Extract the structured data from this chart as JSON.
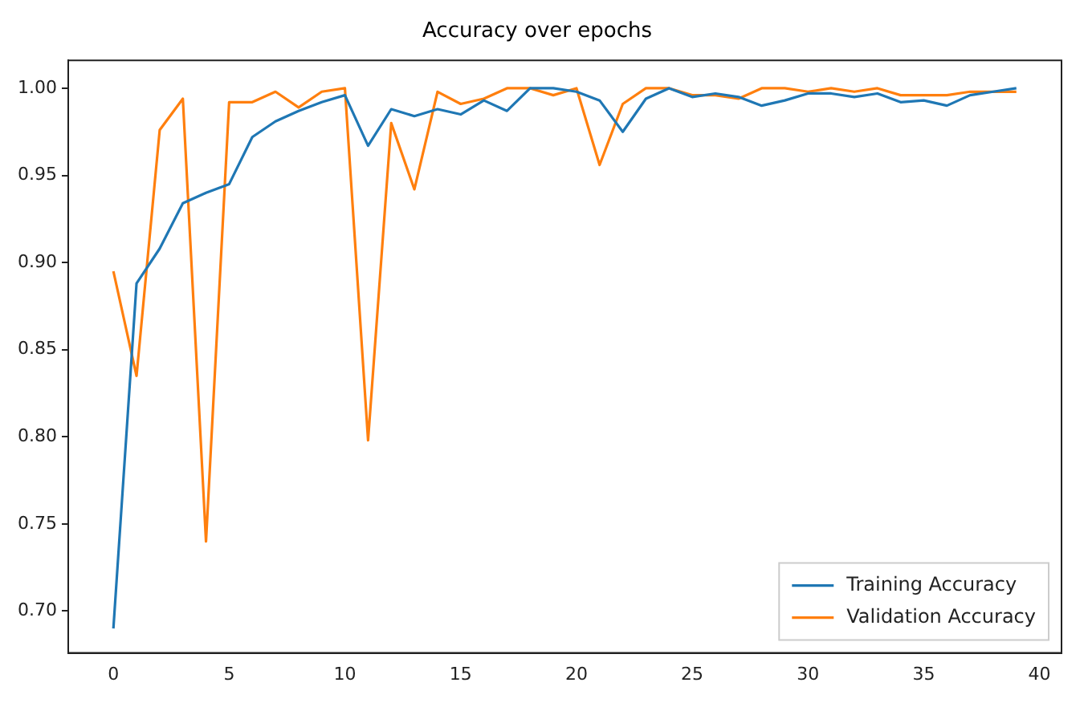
{
  "chart_data": {
    "type": "line",
    "title": "Accuracy over epochs",
    "x": [
      0,
      1,
      2,
      3,
      4,
      5,
      6,
      7,
      8,
      9,
      10,
      11,
      12,
      13,
      14,
      15,
      16,
      17,
      18,
      19,
      20,
      21,
      22,
      23,
      24,
      25,
      26,
      27,
      28,
      29,
      30,
      31,
      32,
      33,
      34,
      35,
      36,
      37,
      38,
      39
    ],
    "series": [
      {
        "name": "Training Accuracy",
        "color": "#1f77b4",
        "values": [
          0.69,
          0.888,
          0.908,
          0.934,
          0.94,
          0.945,
          0.972,
          0.981,
          0.987,
          0.992,
          0.996,
          0.967,
          0.988,
          0.984,
          0.988,
          0.985,
          0.993,
          0.987,
          1.0,
          1.0,
          0.998,
          0.993,
          0.975,
          0.994,
          1.0,
          0.995,
          0.997,
          0.995,
          0.99,
          0.993,
          0.997,
          0.997,
          0.995,
          0.997,
          0.992,
          0.993,
          0.99,
          0.996,
          0.998,
          1.0
        ]
      },
      {
        "name": "Validation Accuracy",
        "color": "#ff7f0e",
        "values": [
          0.895,
          0.835,
          0.976,
          0.994,
          0.74,
          0.992,
          0.992,
          0.998,
          0.989,
          0.998,
          1.0,
          0.798,
          0.98,
          0.942,
          0.998,
          0.991,
          0.994,
          1.0,
          1.0,
          0.996,
          1.0,
          0.956,
          0.991,
          1.0,
          1.0,
          0.996,
          0.996,
          0.994,
          1.0,
          1.0,
          0.998,
          1.0,
          0.998,
          1.0,
          0.996,
          0.996,
          0.996,
          0.998,
          0.998,
          0.998
        ]
      }
    ],
    "xlim": [
      -1.95,
      40.95
    ],
    "xticks": [
      0,
      5,
      10,
      15,
      20,
      25,
      30,
      35,
      40
    ],
    "ylim": [
      0.676,
      1.016
    ],
    "yticks": [
      {
        "value": 0.7,
        "label": "0.70"
      },
      {
        "value": 0.75,
        "label": "0.75"
      },
      {
        "value": 0.8,
        "label": "0.80"
      },
      {
        "value": 0.85,
        "label": "0.85"
      },
      {
        "value": 0.9,
        "label": "0.90"
      },
      {
        "value": 0.95,
        "label": "0.95"
      },
      {
        "value": 1.0,
        "label": "1.00"
      }
    ],
    "grid": false,
    "legend": "bottom right",
    "marker": "none",
    "line_style": "solid"
  }
}
